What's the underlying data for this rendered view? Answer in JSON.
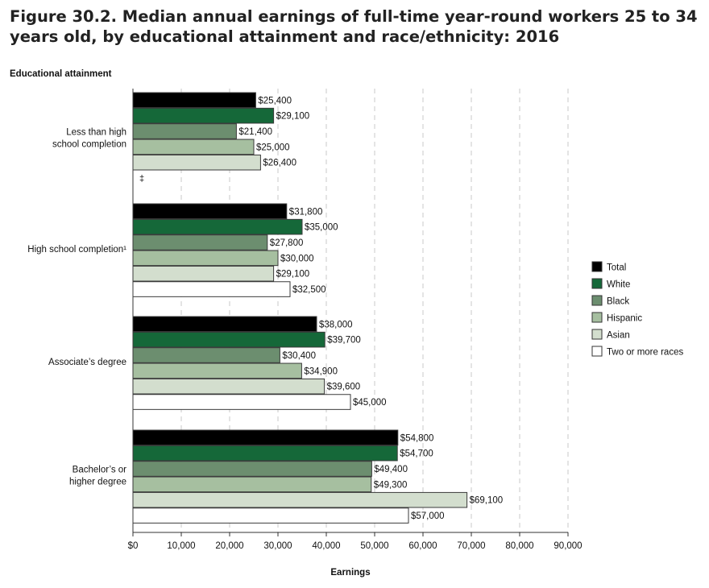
{
  "figure_title": "Figure 30.2. Median annual earnings of full-time year-round workers 25 to 34 years old, by educational attainment and race/ethnicity: 2016",
  "colors": {
    "Total": "#000000",
    "White": "#156839",
    "Black": "#6c8e6f",
    "Hispanic": "#a6bfa0",
    "Asian": "#d3dece",
    "Two or more races": "#ffffff"
  },
  "chart_data": {
    "type": "bar",
    "orientation": "horizontal",
    "title": "Figure 30.2. Median annual earnings of full-time year-round workers 25 to 34 years old, by educational attainment and race/ethnicity: 2016",
    "ylabel": "Educational attainment",
    "xlabel": "Earnings",
    "xlim": [
      0,
      90000
    ],
    "xticks": [
      0,
      10000,
      20000,
      30000,
      40000,
      50000,
      60000,
      70000,
      80000,
      90000
    ],
    "xtick_labels": [
      "$0",
      "10,000",
      "20,000",
      "30,000",
      "40,000",
      "50,000",
      "60,000",
      "70,000",
      "80,000",
      "90,000"
    ],
    "grid": "vertical dashed",
    "legend_position": "right",
    "categories": [
      [
        "Less than high",
        "school completion"
      ],
      [
        "High school completion¹"
      ],
      [
        "Associate’s degree"
      ],
      [
        "Bachelor’s or",
        "higher degree"
      ]
    ],
    "series": [
      {
        "name": "Total",
        "values": [
          25400,
          31800,
          38000,
          54800
        ],
        "labels": [
          "$25,400",
          "$31,800",
          "$38,000",
          "$54,800"
        ]
      },
      {
        "name": "White",
        "values": [
          29100,
          35000,
          39700,
          54700
        ],
        "labels": [
          "$29,100",
          "$35,000",
          "$39,700",
          "$54,700"
        ]
      },
      {
        "name": "Black",
        "values": [
          21400,
          27800,
          30400,
          49400
        ],
        "labels": [
          "$21,400",
          "$27,800",
          "$30,400",
          "$49,400"
        ]
      },
      {
        "name": "Hispanic",
        "values": [
          25000,
          30000,
          34900,
          49300
        ],
        "labels": [
          "$25,000",
          "$30,000",
          "$34,900",
          "$49,300"
        ]
      },
      {
        "name": "Asian",
        "values": [
          26400,
          29100,
          39600,
          69100
        ],
        "labels": [
          "$26,400",
          "$29,100",
          "$39,600",
          "$69,100"
        ]
      },
      {
        "name": "Two or more races",
        "values": [
          null,
          32500,
          45000,
          57000
        ],
        "labels": [
          "‡",
          "$32,500",
          "$45,000",
          "$57,000"
        ]
      }
    ]
  }
}
